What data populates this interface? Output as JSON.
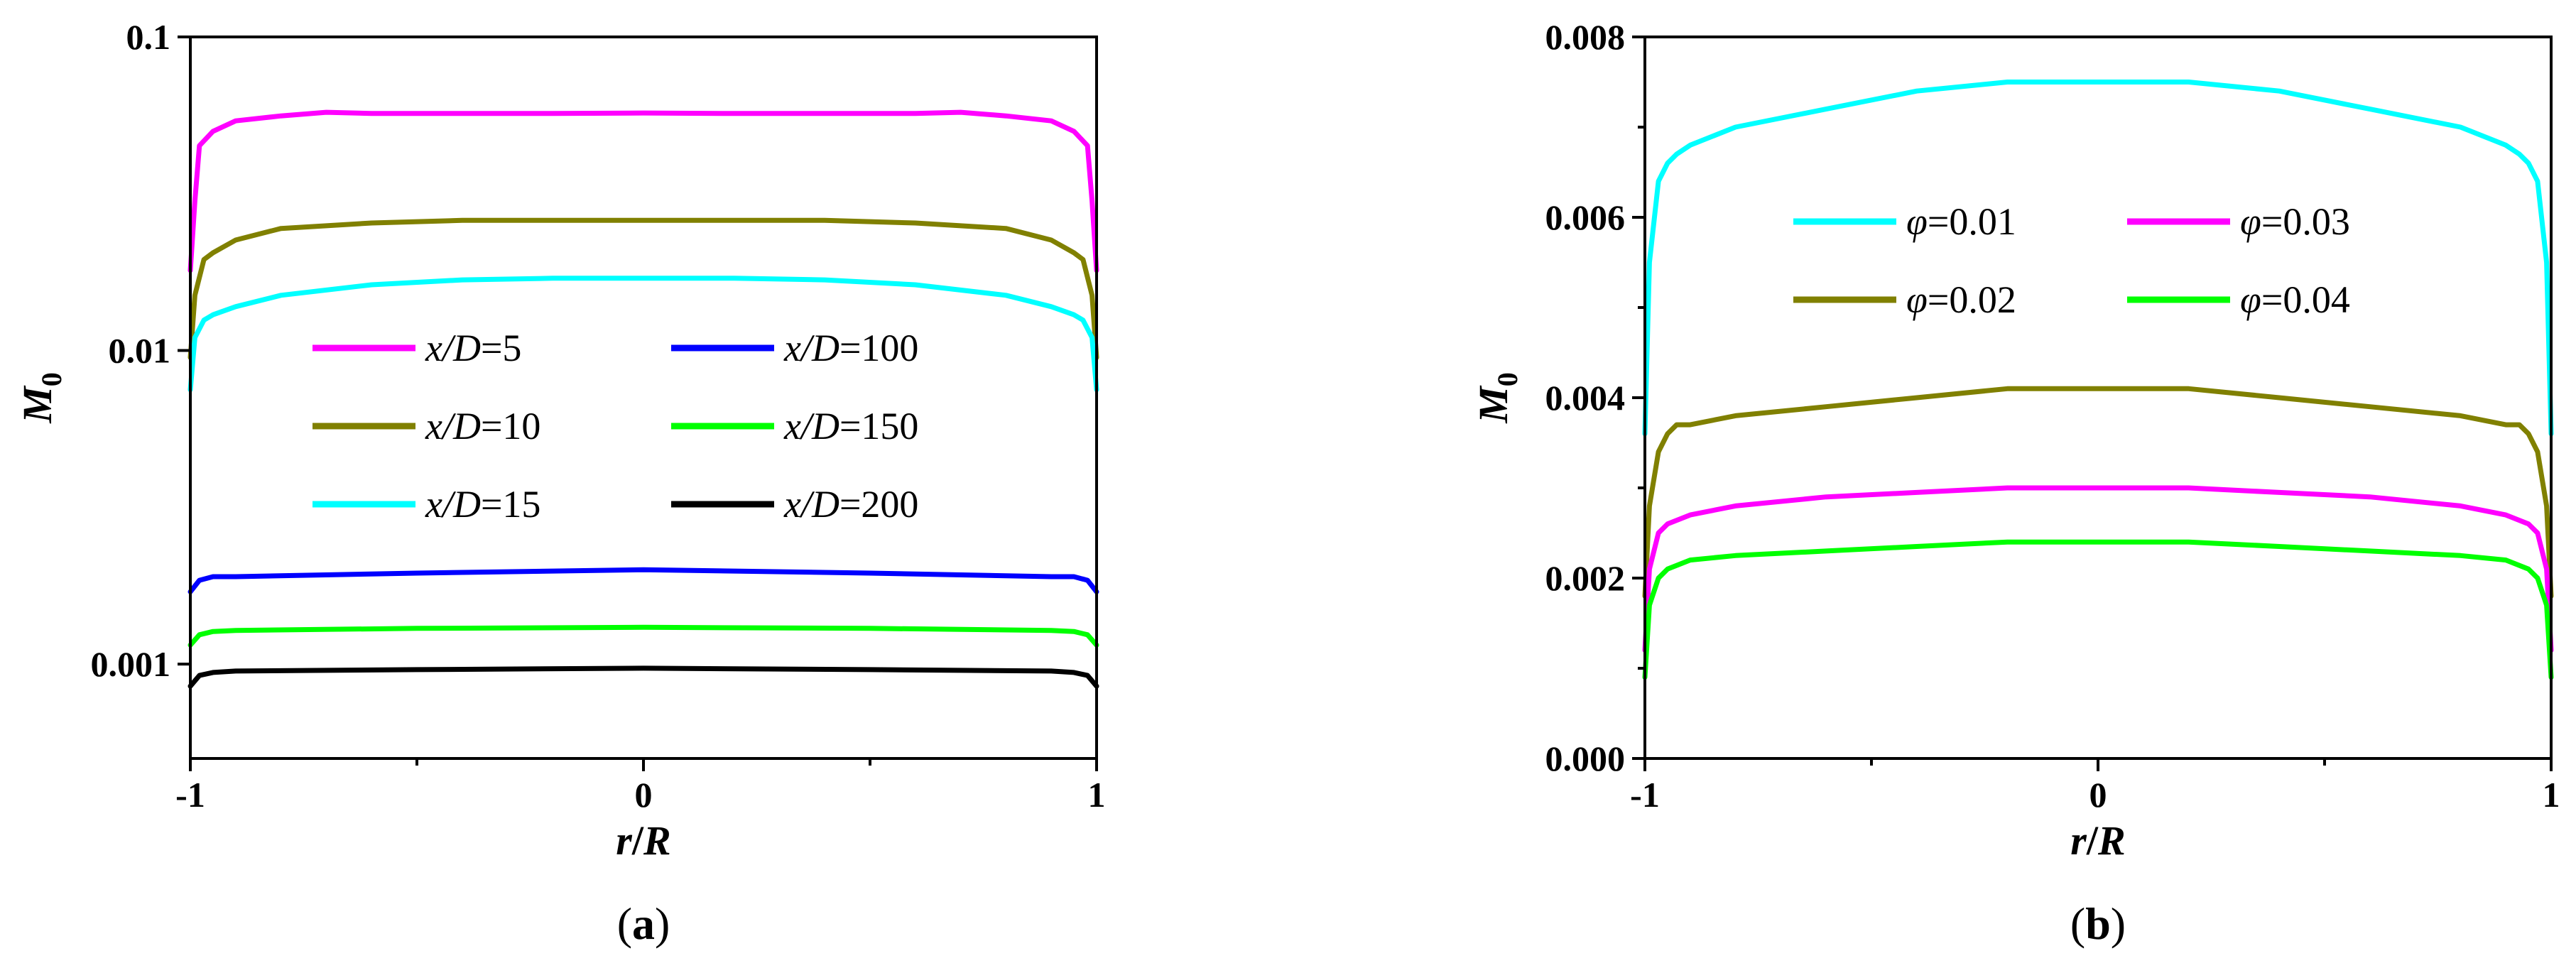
{
  "chart_data": [
    {
      "panel_label": "(a)",
      "panel_letter": "a",
      "type": "line",
      "yscale": "log",
      "xlim": [
        -1,
        1
      ],
      "ylim": [
        0.0005,
        0.1
      ],
      "xlabel": "r/R",
      "xlabel_parts": [
        "r",
        "/",
        "R"
      ],
      "ylabel": "M0",
      "ylabel_parts": [
        "M",
        "0"
      ],
      "xticks": [
        -1,
        0,
        1
      ],
      "xtick_labels": [
        "-1",
        "0",
        "1"
      ],
      "yticks": [
        0.001,
        0.01,
        0.1
      ],
      "ytick_labels": [
        "0.001",
        "0.01",
        "0.1"
      ],
      "legend_position": "center",
      "series": [
        {
          "name": "x/D=5",
          "name_prefix": "x/D",
          "name_value": "=5",
          "color": "#ff00ff",
          "x": [
            -1.0,
            -0.99,
            -0.98,
            -0.95,
            -0.9,
            -0.8,
            -0.7,
            -0.6,
            -0.4,
            -0.2,
            0.0,
            0.2,
            0.4,
            0.6,
            0.7,
            0.8,
            0.9,
            0.95,
            0.98,
            0.99,
            1.0
          ],
          "y": [
            0.018,
            0.03,
            0.045,
            0.05,
            0.054,
            0.056,
            0.0575,
            0.057,
            0.057,
            0.057,
            0.0572,
            0.057,
            0.057,
            0.057,
            0.0575,
            0.056,
            0.054,
            0.05,
            0.045,
            0.03,
            0.018
          ]
        },
        {
          "name": "x/D=10",
          "name_prefix": "x/D",
          "name_value": "=10",
          "color": "#808000",
          "x": [
            -1.0,
            -0.99,
            -0.97,
            -0.95,
            -0.9,
            -0.8,
            -0.6,
            -0.4,
            -0.2,
            0.0,
            0.2,
            0.4,
            0.6,
            0.8,
            0.9,
            0.95,
            0.97,
            0.99,
            1.0
          ],
          "y": [
            0.0095,
            0.015,
            0.0195,
            0.0205,
            0.0225,
            0.0245,
            0.0255,
            0.026,
            0.026,
            0.026,
            0.026,
            0.026,
            0.0255,
            0.0245,
            0.0225,
            0.0205,
            0.0195,
            0.015,
            0.0095
          ]
        },
        {
          "name": "x/D=15",
          "name_prefix": "x/D",
          "name_value": "=15",
          "color": "#00ffff",
          "x": [
            -1.0,
            -0.99,
            -0.97,
            -0.95,
            -0.9,
            -0.8,
            -0.6,
            -0.4,
            -0.2,
            0.0,
            0.2,
            0.4,
            0.6,
            0.8,
            0.9,
            0.95,
            0.97,
            0.99,
            1.0
          ],
          "y": [
            0.0075,
            0.011,
            0.0125,
            0.013,
            0.0138,
            0.015,
            0.0162,
            0.0168,
            0.017,
            0.017,
            0.017,
            0.0168,
            0.0162,
            0.015,
            0.0138,
            0.013,
            0.0125,
            0.011,
            0.0075
          ]
        },
        {
          "name": "x/D=100",
          "name_prefix": "x/D",
          "name_value": "=100",
          "color": "#0000ff",
          "x": [
            -1.0,
            -0.98,
            -0.95,
            -0.9,
            -0.5,
            0.0,
            0.5,
            0.9,
            0.95,
            0.98,
            1.0
          ],
          "y": [
            0.0017,
            0.00185,
            0.0019,
            0.0019,
            0.00195,
            0.002,
            0.00195,
            0.0019,
            0.0019,
            0.00185,
            0.0017
          ]
        },
        {
          "name": "x/D=150",
          "name_prefix": "x/D",
          "name_value": "=150",
          "color": "#00ff00",
          "x": [
            -1.0,
            -0.98,
            -0.95,
            -0.9,
            -0.5,
            0.0,
            0.5,
            0.9,
            0.95,
            0.98,
            1.0
          ],
          "y": [
            0.00115,
            0.00124,
            0.00127,
            0.00128,
            0.0013,
            0.00131,
            0.0013,
            0.00128,
            0.00127,
            0.00124,
            0.00115
          ]
        },
        {
          "name": "x/D=200",
          "name_prefix": "x/D",
          "name_value": "=200",
          "color": "#000000",
          "x": [
            -1.0,
            -0.98,
            -0.95,
            -0.9,
            -0.5,
            0.0,
            0.5,
            0.9,
            0.95,
            0.98,
            1.0
          ],
          "y": [
            0.00085,
            0.00092,
            0.00094,
            0.00095,
            0.00096,
            0.00097,
            0.00096,
            0.00095,
            0.00094,
            0.00092,
            0.00085
          ]
        }
      ]
    },
    {
      "panel_label": "(b)",
      "panel_letter": "b",
      "type": "line",
      "yscale": "linear",
      "xlim": [
        -1,
        1
      ],
      "ylim": [
        0,
        0.008
      ],
      "xlabel": "r/R",
      "xlabel_parts": [
        "r",
        "/",
        "R"
      ],
      "ylabel": "M0",
      "ylabel_parts": [
        "M",
        "0"
      ],
      "xticks": [
        -1,
        0,
        1
      ],
      "xtick_labels": [
        "-1",
        "0",
        "1"
      ],
      "yticks": [
        0,
        0.002,
        0.004,
        0.006,
        0.008
      ],
      "ytick_labels": [
        "0.000",
        "0.002",
        "0.004",
        "0.006",
        "0.008"
      ],
      "legend_position": "top-center",
      "series": [
        {
          "name": "φ=0.01",
          "name_prefix": "φ",
          "name_value": "=0.01",
          "color": "#00ffff",
          "x": [
            -1.0,
            -0.99,
            -0.97,
            -0.95,
            -0.93,
            -0.9,
            -0.8,
            -0.6,
            -0.4,
            -0.2,
            0.0,
            0.2,
            0.4,
            0.6,
            0.8,
            0.9,
            0.93,
            0.95,
            0.97,
            0.99,
            1.0
          ],
          "y": [
            0.0036,
            0.0055,
            0.0064,
            0.0066,
            0.0067,
            0.0068,
            0.007,
            0.0072,
            0.0074,
            0.0075,
            0.0075,
            0.0075,
            0.0074,
            0.0072,
            0.007,
            0.0068,
            0.0067,
            0.0066,
            0.0064,
            0.0055,
            0.0036
          ]
        },
        {
          "name": "φ=0.02",
          "name_prefix": "φ",
          "name_value": "=0.02",
          "color": "#808000",
          "x": [
            -1.0,
            -0.99,
            -0.97,
            -0.95,
            -0.93,
            -0.9,
            -0.8,
            -0.6,
            -0.4,
            -0.2,
            0.0,
            0.2,
            0.4,
            0.6,
            0.8,
            0.9,
            0.93,
            0.95,
            0.97,
            0.99,
            1.0
          ],
          "y": [
            0.0018,
            0.0028,
            0.0034,
            0.0036,
            0.0037,
            0.0037,
            0.0038,
            0.0039,
            0.004,
            0.0041,
            0.0041,
            0.0041,
            0.004,
            0.0039,
            0.0038,
            0.0037,
            0.0037,
            0.0036,
            0.0034,
            0.0028,
            0.0018
          ]
        },
        {
          "name": "φ=0.03",
          "name_prefix": "φ",
          "name_value": "=0.03",
          "color": "#ff00ff",
          "x": [
            -1.0,
            -0.99,
            -0.97,
            -0.95,
            -0.9,
            -0.8,
            -0.6,
            -0.4,
            -0.2,
            0.0,
            0.2,
            0.4,
            0.6,
            0.8,
            0.9,
            0.95,
            0.97,
            0.99,
            1.0
          ],
          "y": [
            0.0012,
            0.0021,
            0.0025,
            0.0026,
            0.0027,
            0.0028,
            0.0029,
            0.00295,
            0.003,
            0.003,
            0.003,
            0.00295,
            0.0029,
            0.0028,
            0.0027,
            0.0026,
            0.0025,
            0.0021,
            0.0012
          ]
        },
        {
          "name": "φ=0.04",
          "name_prefix": "φ",
          "name_value": "=0.04",
          "color": "#00ff00",
          "x": [
            -1.0,
            -0.99,
            -0.97,
            -0.95,
            -0.9,
            -0.8,
            -0.6,
            -0.4,
            -0.2,
            0.0,
            0.2,
            0.4,
            0.6,
            0.8,
            0.9,
            0.95,
            0.97,
            0.99,
            1.0
          ],
          "y": [
            0.0009,
            0.0017,
            0.002,
            0.0021,
            0.0022,
            0.00225,
            0.0023,
            0.00235,
            0.0024,
            0.0024,
            0.0024,
            0.00235,
            0.0023,
            0.00225,
            0.0022,
            0.0021,
            0.002,
            0.0017,
            0.0009
          ]
        }
      ]
    }
  ]
}
